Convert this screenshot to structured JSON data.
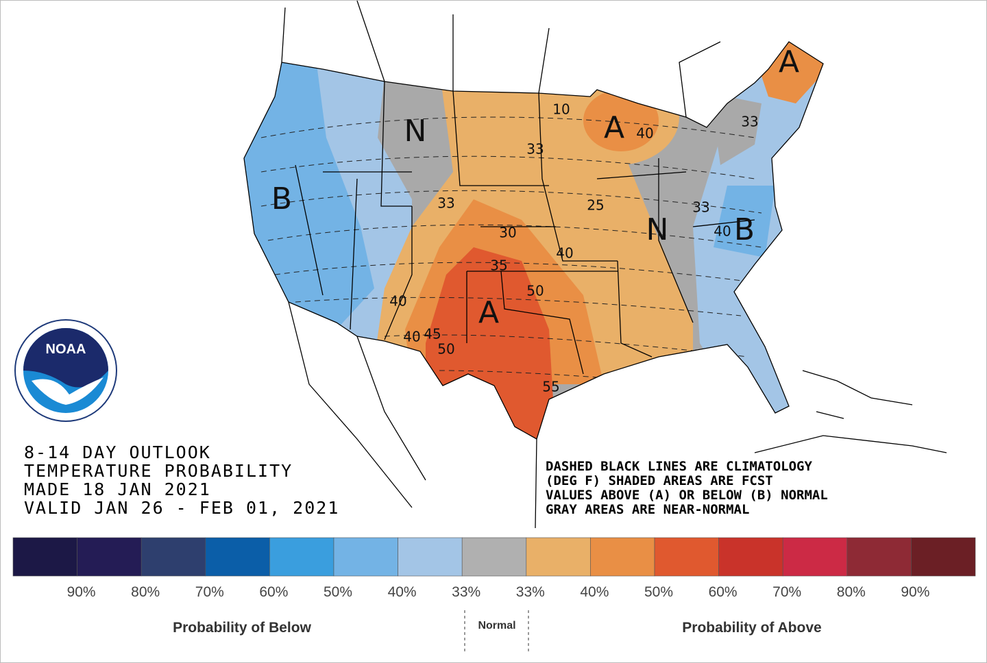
{
  "outlook": {
    "lines": [
      "8-14 DAY OUTLOOK",
      "TEMPERATURE PROBABILITY",
      "MADE  18 JAN 2021",
      "VALID  JAN 26 - FEB 01, 2021"
    ]
  },
  "notes": [
    "DASHED BLACK LINES ARE CLIMATOLOGY",
    "(DEG F) SHADED AREAS ARE FCST",
    "VALUES ABOVE (A) OR BELOW (B) NORMAL",
    "GRAY AREAS ARE NEAR-NORMAL"
  ],
  "logo": "NOAA",
  "map_labels": [
    "N",
    "A",
    "A",
    "B",
    "N",
    "B",
    "A",
    "33",
    "33",
    "40",
    "33",
    "33",
    "40",
    "30",
    "40",
    "35",
    "50",
    "40",
    "40",
    "45",
    "50",
    "55",
    "25",
    "10"
  ],
  "legend": {
    "colors": [
      "#1c1846",
      "#241c55",
      "#2e3f6e",
      "#0b5ea8",
      "#3a9ede",
      "#73b3e5",
      "#a3c5e6",
      "#b0b0b0",
      "#e9b068",
      "#e98f45",
      "#e0592f",
      "#c9332a",
      "#cc2a45",
      "#8e2a35",
      "#6b1f25"
    ],
    "labels": [
      "90%",
      "80%",
      "70%",
      "60%",
      "50%",
      "40%",
      "33%",
      "33%",
      "40%",
      "50%",
      "60%",
      "70%",
      "80%",
      "90%"
    ],
    "below": "Probability of Below",
    "normal": "Normal",
    "above": "Probability of Above"
  }
}
